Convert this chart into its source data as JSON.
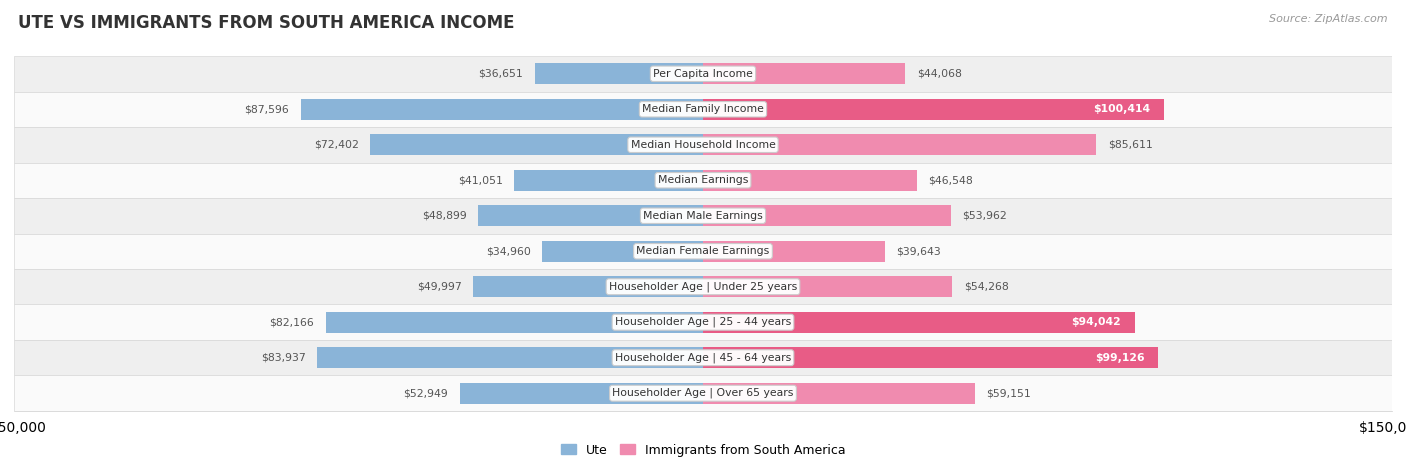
{
  "title": "UTE VS IMMIGRANTS FROM SOUTH AMERICA INCOME",
  "source": "Source: ZipAtlas.com",
  "categories": [
    "Per Capita Income",
    "Median Family Income",
    "Median Household Income",
    "Median Earnings",
    "Median Male Earnings",
    "Median Female Earnings",
    "Householder Age | Under 25 years",
    "Householder Age | 25 - 44 years",
    "Householder Age | 45 - 64 years",
    "Householder Age | Over 65 years"
  ],
  "ute_values": [
    36651,
    87596,
    72402,
    41051,
    48899,
    34960,
    49997,
    82166,
    83937,
    52949
  ],
  "immigrant_values": [
    44068,
    100414,
    85611,
    46548,
    53962,
    39643,
    54268,
    94042,
    99126,
    59151
  ],
  "ute_labels": [
    "$36,651",
    "$87,596",
    "$72,402",
    "$41,051",
    "$48,899",
    "$34,960",
    "$49,997",
    "$82,166",
    "$83,937",
    "$52,949"
  ],
  "immigrant_labels": [
    "$44,068",
    "$100,414",
    "$85,611",
    "$46,548",
    "$53,962",
    "$39,643",
    "$54,268",
    "$94,042",
    "$99,126",
    "$59,151"
  ],
  "ute_color": "#8ab4d8",
  "immigrant_color": "#f08baf",
  "immigrant_color_highlight": "#e85c86",
  "max_value": 150000,
  "row_bg_even": "#efefef",
  "row_bg_odd": "#fafafa",
  "label_color": "#555555",
  "label_color_white": "#ffffff",
  "white_threshold": 88000,
  "bar_height": 0.58,
  "legend_label_ute": "Ute",
  "legend_label_imm": "Immigrants from South America"
}
